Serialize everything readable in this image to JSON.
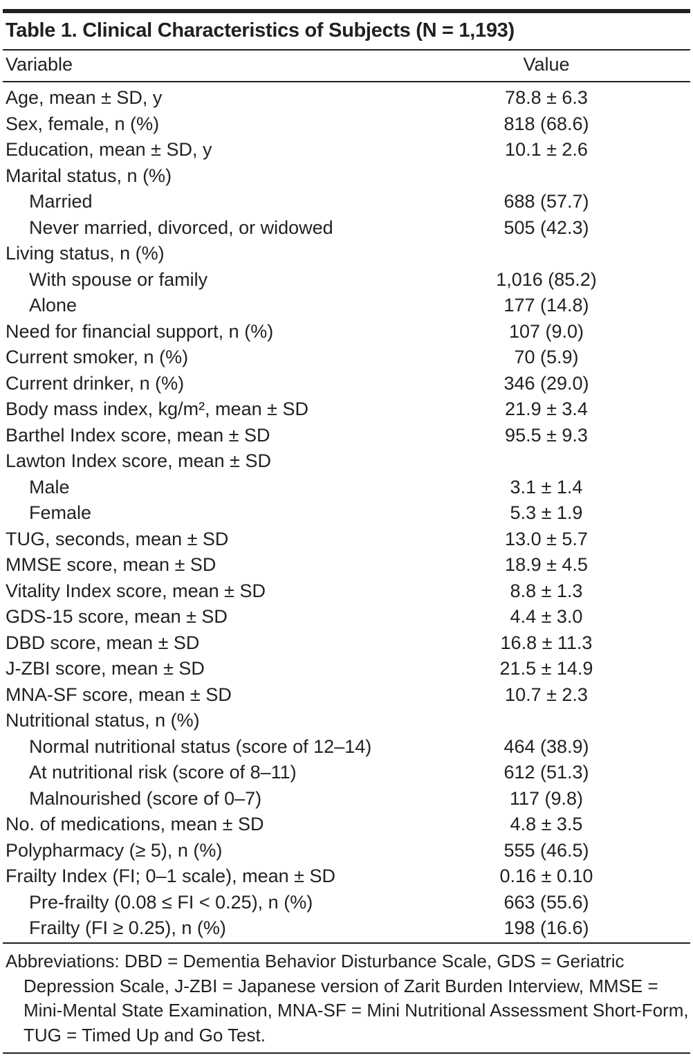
{
  "title": "Table 1. Clinical Characteristics of Subjects (N = 1,193)",
  "headers": {
    "variable": "Variable",
    "value": "Value"
  },
  "rows": [
    {
      "label": "Age, mean ± SD, y",
      "value": "78.8 ± 6.3",
      "indent": false
    },
    {
      "label": "Sex, female, n (%)",
      "value": "818 (68.6)",
      "indent": false
    },
    {
      "label": "Education, mean ± SD, y",
      "value": "10.1 ± 2.6",
      "indent": false
    },
    {
      "label": "Marital status, n (%)",
      "value": "",
      "indent": false
    },
    {
      "label": "Married",
      "value": "688 (57.7)",
      "indent": true
    },
    {
      "label": "Never married, divorced, or widowed",
      "value": "505 (42.3)",
      "indent": true
    },
    {
      "label": "Living status, n (%)",
      "value": "",
      "indent": false
    },
    {
      "label": "With spouse or family",
      "value": "1,016 (85.2)",
      "indent": true
    },
    {
      "label": "Alone",
      "value": "177 (14.8)",
      "indent": true
    },
    {
      "label": "Need for financial support, n (%)",
      "value": "107 (9.0)",
      "indent": false
    },
    {
      "label": "Current smoker, n (%)",
      "value": "70 (5.9)",
      "indent": false
    },
    {
      "label": "Current drinker, n (%)",
      "value": "346 (29.0)",
      "indent": false
    },
    {
      "label": "Body mass index, kg/m², mean ± SD",
      "value": "21.9 ± 3.4",
      "indent": false
    },
    {
      "label": "Barthel Index score, mean ± SD",
      "value": "95.5 ± 9.3",
      "indent": false
    },
    {
      "label": "Lawton Index score, mean ± SD",
      "value": "",
      "indent": false
    },
    {
      "label": "Male",
      "value": "3.1 ± 1.4",
      "indent": true
    },
    {
      "label": "Female",
      "value": "5.3 ± 1.9",
      "indent": true
    },
    {
      "label": "TUG, seconds, mean ± SD",
      "value": "13.0 ± 5.7",
      "indent": false
    },
    {
      "label": "MMSE score, mean ± SD",
      "value": "18.9 ± 4.5",
      "indent": false
    },
    {
      "label": "Vitality Index score, mean ± SD",
      "value": "8.8 ± 1.3",
      "indent": false
    },
    {
      "label": "GDS-15 score, mean ± SD",
      "value": "4.4 ± 3.0",
      "indent": false
    },
    {
      "label": "DBD score, mean ± SD",
      "value": "16.8 ± 11.3",
      "indent": false
    },
    {
      "label": "J-ZBI score, mean ± SD",
      "value": "21.5 ± 14.9",
      "indent": false
    },
    {
      "label": "MNA-SF score, mean ± SD",
      "value": "10.7 ± 2.3",
      "indent": false
    },
    {
      "label": "Nutritional status, n (%)",
      "value": "",
      "indent": false
    },
    {
      "label": "Normal nutritional status (score of 12–14)",
      "value": "464 (38.9)",
      "indent": true
    },
    {
      "label": "At nutritional risk (score of 8–11)",
      "value": "612 (51.3)",
      "indent": true
    },
    {
      "label": "Malnourished (score of 0–7)",
      "value": "117 (9.8)",
      "indent": true
    },
    {
      "label": "No. of medications, mean ± SD",
      "value": "4.8 ± 3.5",
      "indent": false
    },
    {
      "label": "Polypharmacy (≥ 5), n (%)",
      "value": "555 (46.5)",
      "indent": false
    },
    {
      "label": "Frailty Index (FI; 0–1 scale), mean ± SD",
      "value": "0.16 ± 0.10",
      "indent": false
    },
    {
      "label": "Pre-frailty (0.08 ≤ FI < 0.25), n (%)",
      "value": "663 (55.6)",
      "indent": true
    },
    {
      "label": "Frailty (FI ≥ 0.25), n (%)",
      "value": "198 (16.6)",
      "indent": true
    }
  ],
  "footnote": "Abbreviations: DBD = Dementia Behavior Disturbance Scale, GDS = Geriatric Depression Scale, J-ZBI = Japanese version of Zarit Burden Interview, MMSE = Mini-Mental State Examination, MNA-SF = Mini Nutritional Assessment Short-Form, TUG = Timed Up and Go Test."
}
